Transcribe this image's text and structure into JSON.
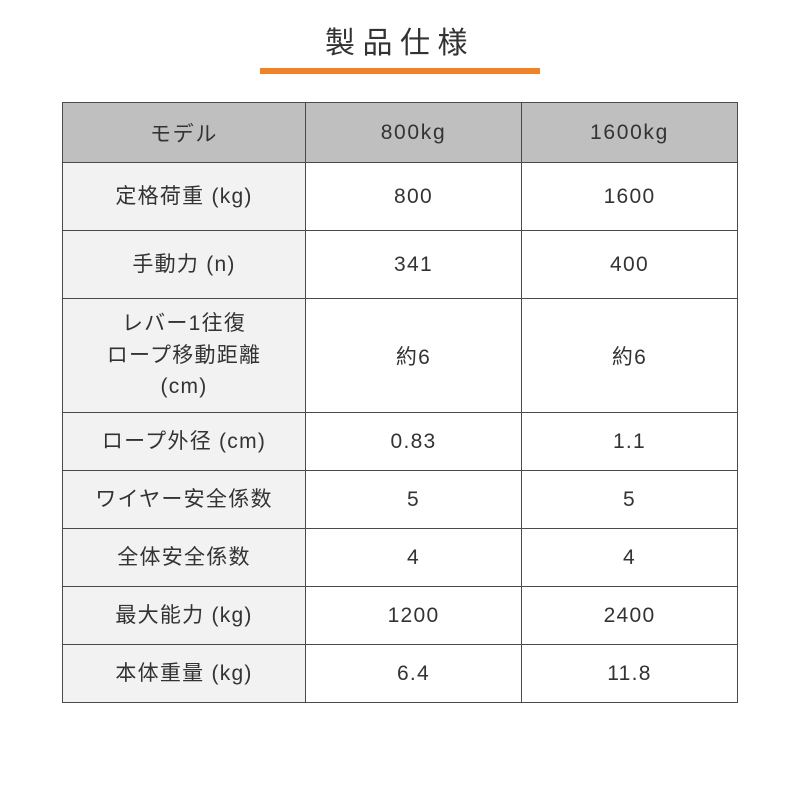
{
  "title": "製品仕様",
  "accent_color": "#f08227",
  "table": {
    "columns": [
      "モデル",
      "800kg",
      "1600kg"
    ],
    "column_widths_pct": [
      36,
      32,
      32
    ],
    "header_bg": "#bfbfbf",
    "label_bg": "#f2f2f2",
    "cell_bg": "#ffffff",
    "border_color": "#4a4a4a",
    "text_color": "#333333",
    "font_size_pt": 16,
    "rows": [
      {
        "label": "定格荷重 (kg)",
        "v1": "800",
        "v2": "1600",
        "height": "normal"
      },
      {
        "label": "手動力 (n)",
        "v1": "341",
        "v2": "400",
        "height": "normal"
      },
      {
        "label": "レバー1往復\nロープ移動距離\n(cm)",
        "v1": "約6",
        "v2": "約6",
        "height": "tall"
      },
      {
        "label": "ロープ外径 (cm)",
        "v1": "0.83",
        "v2": "1.1",
        "height": "short"
      },
      {
        "label": "ワイヤー安全係数",
        "v1": "5",
        "v2": "5",
        "height": "short"
      },
      {
        "label": "全体安全係数",
        "v1": "4",
        "v2": "4",
        "height": "short"
      },
      {
        "label": "最大能力 (kg)",
        "v1": "1200",
        "v2": "2400",
        "height": "short"
      },
      {
        "label": "本体重量 (kg)",
        "v1": "6.4",
        "v2": "11.8",
        "height": "short"
      }
    ]
  }
}
